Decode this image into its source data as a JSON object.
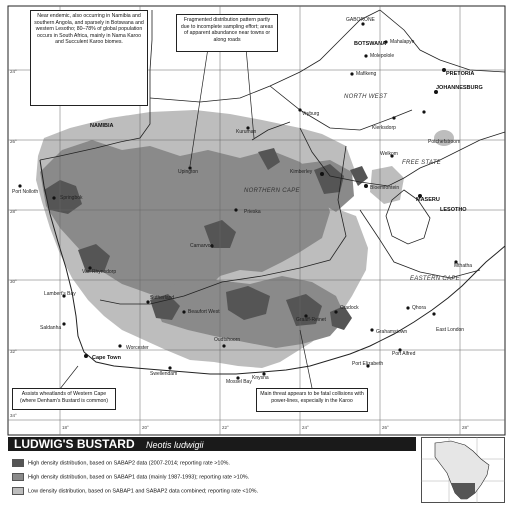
{
  "map": {
    "countries": [
      "NAMIBIA",
      "BOTSWANA",
      "NORTH WEST",
      "FREE STATE",
      "LESOTHO",
      "NORTHERN CAPE",
      "EASTERN CAPE"
    ],
    "towns": [
      "GABORONE",
      "Mahalapye",
      "Molepolole",
      "Mafikeng",
      "PRETORIA",
      "JOHANNESBURG",
      "Vryburg",
      "Klerksdorp",
      "Potchefstroom",
      "Welkom",
      "Kuruman",
      "Upington",
      "Kimberley",
      "Bloemfontein",
      "MASERU",
      "Port Nolloth",
      "Springbok",
      "Prieska",
      "Carnarvon",
      "Van Rhynsdorp",
      "Lambert's Bay",
      "Saldanha",
      "Cape Town",
      "Sutherland",
      "Beaufort West",
      "Oudtshoorn",
      "Worcester",
      "Swellendam",
      "Mossel Bay",
      "Knysna",
      "Graaff-Reinet",
      "Cradock",
      "Grahamstown",
      "East London",
      "Port Alfred",
      "Port Elizabeth",
      "Mthatha",
      "Qhora"
    ],
    "lat_ticks": [
      "24°",
      "26°",
      "28°",
      "30°",
      "32°",
      "34°"
    ],
    "lon_ticks": [
      "18°",
      "20°",
      "22°",
      "24°",
      "26°",
      "28°"
    ]
  },
  "notes": {
    "endemic": "Near endemic, also occurring in Namibia and southern Angola, and sparsely in Botswana and western Lesotho; 80–78% of global population occurs in South Africa, mainly in Nama Karoo and Succulent Karoo biomes.",
    "fragmented": "Fragmented distribution pattern partly due to incomplete sampling effort; areas of apparent abundance near towns or along roads",
    "wheatlands": "Assists wheatlands of Western Cape (where Denham's Bustard is common)",
    "threat": "Main threat appears to be fatal collisions with power-lines, especially in the Karoo"
  },
  "legend": {
    "title": "LUDWIG'S BUSTARD",
    "scientific_name": "Neotis ludwigii",
    "items": [
      {
        "label": "High density distribution, based on SABAP2 data (2007-2014; reporting rate >10%.",
        "color": "#555555"
      },
      {
        "label": "High density distribution, based on SABAP1 data (mainly 1987-1993); reporting rate >10%.",
        "color": "#8a8a8a"
      },
      {
        "label": "Low density distribution, based on SABAP1 and SABAP2 data combined; reporting rate <10%.",
        "color": "#bdbdbd"
      }
    ]
  },
  "colors": {
    "low": "#bdbdbd",
    "high1": "#8a8a8a",
    "high2": "#555555",
    "border": "#222222",
    "grid": "#666666"
  }
}
